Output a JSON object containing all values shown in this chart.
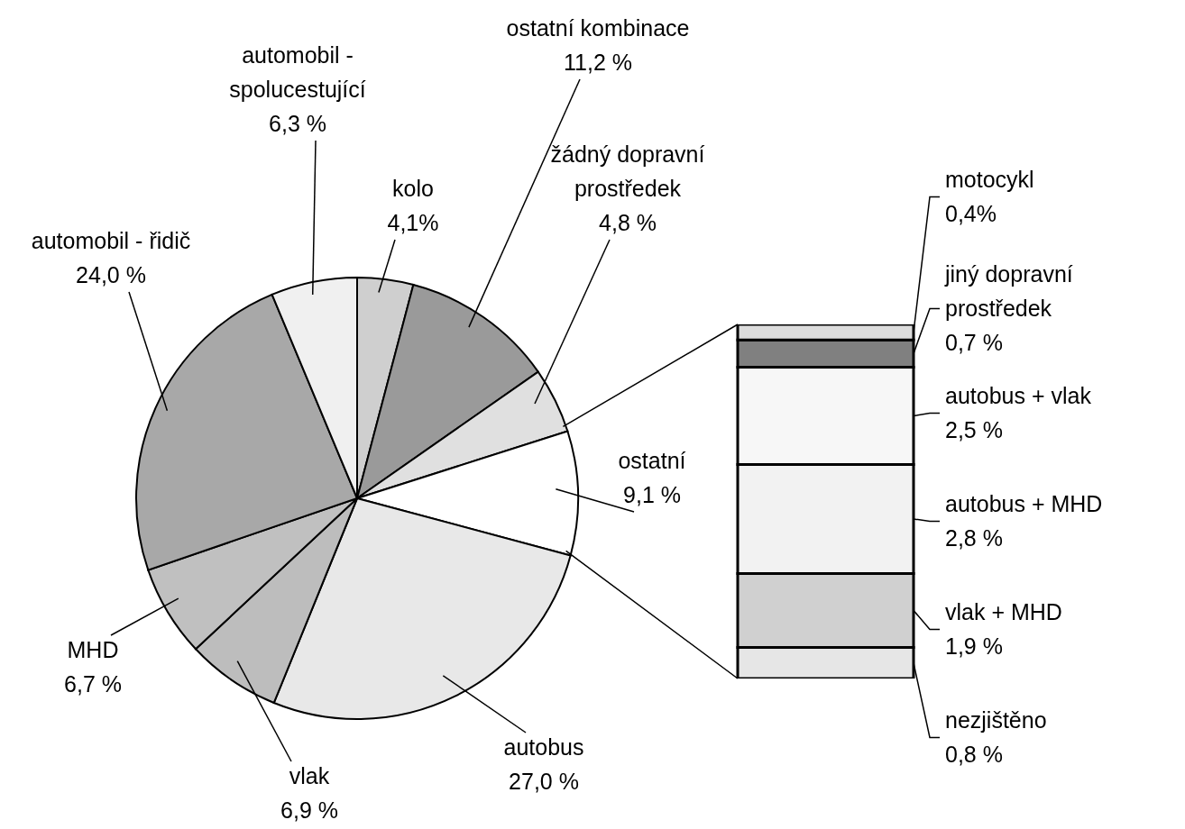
{
  "chart_data": [
    {
      "type": "pie",
      "categories": [
        "kolo",
        "ostatní kombinace",
        "žádný dopravní prostředek",
        "ostatní",
        "autobus",
        "vlak",
        "MHD",
        "automobil - řidič",
        "automobil - spolucestující"
      ],
      "values": [
        4.1,
        11.2,
        4.8,
        9.1,
        27.0,
        6.9,
        6.7,
        24.0,
        6.3
      ],
      "colors": [
        "#cfcfcf",
        "#9a9a9a",
        "#e0e0e0",
        "#ffffff",
        "#e8e8e8",
        "#bdbdbd",
        "#c0c0c0",
        "#a8a8a8",
        "#f0f0f0"
      ],
      "value_labels": [
        "4,1%",
        "11,2 %",
        "4,8 %",
        "9,1 %",
        "27,0 %",
        "6,9 %",
        "6,7 %",
        "24,0 %",
        "6,3 %"
      ]
    },
    {
      "type": "bar",
      "stacked": true,
      "categories": [
        null
      ],
      "series": [
        {
          "name": "nezjištěno",
          "color": "#e6e6e6",
          "values": [
            0.8
          ],
          "value_labels": [
            "0,8 %"
          ]
        },
        {
          "name": "vlak + MHD",
          "color": "#d0d0d0",
          "values": [
            1.9
          ],
          "value_labels": [
            "1,9 %"
          ]
        },
        {
          "name": "autobus + MHD",
          "color": "#f2f2f2",
          "values": [
            2.8
          ],
          "value_labels": [
            "2,8 %"
          ]
        },
        {
          "name": "autobus + vlak",
          "color": "#f7f7f7",
          "values": [
            2.5
          ],
          "value_labels": [
            "2,5 %"
          ]
        },
        {
          "name": "jiný dopravní prostředek",
          "color": "#808080",
          "values": [
            0.7
          ],
          "value_labels": [
            "0,7 %"
          ]
        },
        {
          "name": "motocykl",
          "color": "#dcdcdc",
          "values": [
            0.4
          ],
          "value_labels": [
            "0,4%"
          ]
        }
      ]
    }
  ]
}
